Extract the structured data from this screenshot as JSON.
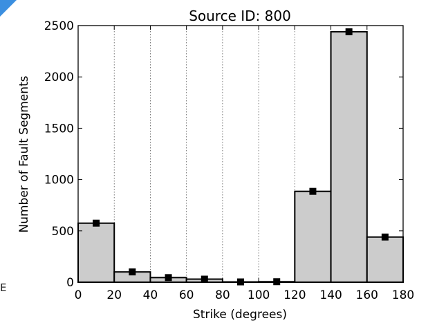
{
  "stray_text": "E",
  "colors": {
    "bar_fill": "#cccccc",
    "bar_edge": "#000000",
    "marker": "#000000",
    "grid": "#555555",
    "corner": "#3b8fe0"
  },
  "chart_data": {
    "type": "bar",
    "title": "Source ID: 800",
    "xlabel": "Strike (degrees)",
    "ylabel": "Number of Fault Segments",
    "xlim": [
      0,
      180
    ],
    "ylim": [
      0,
      2500
    ],
    "xticks": [
      0,
      20,
      40,
      60,
      80,
      100,
      120,
      140,
      160,
      180
    ],
    "yticks": [
      0,
      500,
      1000,
      1500,
      2000,
      2500
    ],
    "grid": "x-dotted",
    "bins": [
      {
        "x0": 0,
        "x1": 20,
        "value": 575
      },
      {
        "x0": 20,
        "x1": 40,
        "value": 100
      },
      {
        "x0": 40,
        "x1": 60,
        "value": 45
      },
      {
        "x0": 60,
        "x1": 80,
        "value": 30
      },
      {
        "x0": 80,
        "x1": 100,
        "value": 3
      },
      {
        "x0": 100,
        "x1": 120,
        "value": 5
      },
      {
        "x0": 120,
        "x1": 140,
        "value": 885
      },
      {
        "x0": 140,
        "x1": 160,
        "value": 2440
      },
      {
        "x0": 160,
        "x1": 180,
        "value": 440
      }
    ],
    "markers": [
      {
        "x": 10,
        "y": 575
      },
      {
        "x": 30,
        "y": 100
      },
      {
        "x": 50,
        "y": 45
      },
      {
        "x": 70,
        "y": 30
      },
      {
        "x": 90,
        "y": 3
      },
      {
        "x": 110,
        "y": 5
      },
      {
        "x": 130,
        "y": 885
      },
      {
        "x": 150,
        "y": 2440
      },
      {
        "x": 170,
        "y": 440
      }
    ]
  }
}
